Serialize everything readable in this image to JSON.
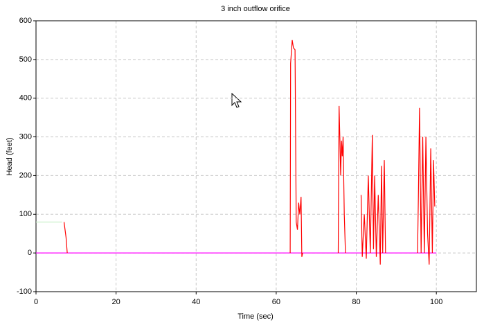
{
  "chart_data": {
    "type": "line",
    "title": "3 inch outflow orifice",
    "x_label": "Time (sec)",
    "y_label": "Head (feet)",
    "xlim": [
      0,
      110
    ],
    "xticks": [
      0,
      20,
      40,
      60,
      80,
      100
    ],
    "ylim": [
      -100,
      600
    ],
    "yticks": [
      -100,
      0,
      100,
      200,
      300,
      400,
      500,
      600
    ],
    "grid": true,
    "series": [
      {
        "color": "#c8f0c8",
        "x": [
          0,
          6.5
        ],
        "values": [
          80,
          80
        ]
      },
      {
        "color": "#ff00ff",
        "x": [
          0,
          100
        ],
        "values": [
          0,
          0
        ]
      },
      {
        "color": "#ff0000",
        "x": [
          7,
          7.5,
          7.8,
          30,
          63.5,
          63.6,
          63.8,
          64,
          64.3,
          64.7,
          65,
          65.3,
          65.6,
          65.9,
          66.2,
          66.4,
          66.6,
          70,
          75.5,
          75.7,
          75.9,
          76.1,
          76.3,
          76.5,
          76.7,
          77,
          77.3,
          79,
          81.2,
          81.5,
          82,
          82.5,
          83,
          83.5,
          84,
          84.3,
          84.6,
          85,
          85.5,
          86,
          86.3,
          86.6,
          87,
          87.3,
          90,
          95.3,
          95.5,
          95.8,
          96.2,
          96.6,
          97,
          97.4,
          97.8,
          98.2,
          98.6,
          99,
          99.3,
          99.6
        ],
        "values": [
          80,
          40,
          0,
          null,
          0,
          490,
          520,
          550,
          530,
          525,
          80,
          60,
          130,
          100,
          145,
          -10,
          0,
          null,
          0,
          380,
          300,
          200,
          290,
          250,
          300,
          100,
          0,
          null,
          150,
          -10,
          100,
          -15,
          200,
          0,
          305,
          10,
          200,
          -10,
          150,
          -30,
          225,
          0,
          240,
          0,
          null,
          0,
          140,
          375,
          0,
          300,
          0,
          300,
          50,
          -30,
          270,
          0,
          240,
          120
        ]
      }
    ]
  }
}
